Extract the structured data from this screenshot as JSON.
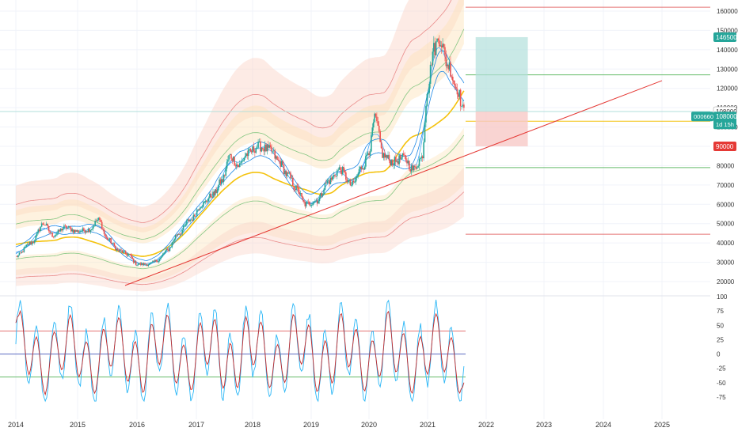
{
  "chart_data": [
    {
      "type": "candlestick",
      "title": "",
      "xlabel": "",
      "ylabel": "",
      "x_range": [
        2014.0,
        2025.9
      ],
      "ylim": [
        14000,
        164000
      ],
      "x_tick_labels": [
        "2014",
        "2015",
        "2016",
        "2017",
        "2018",
        "2019",
        "2020",
        "2021",
        "2022",
        "2023",
        "2024",
        "2025"
      ],
      "y_tick_labels": [
        "160000",
        "150000",
        "140000",
        "130000",
        "120000",
        "110000",
        "100000",
        "90000",
        "80000",
        "70000",
        "60000",
        "50000",
        "40000",
        "30000",
        "20000"
      ],
      "price_anchors": [
        [
          2014.0,
          33000
        ],
        [
          2014.25,
          40000
        ],
        [
          2014.45,
          50000
        ],
        [
          2014.6,
          44000
        ],
        [
          2014.8,
          48000
        ],
        [
          2015.0,
          46000
        ],
        [
          2015.2,
          47000
        ],
        [
          2015.35,
          52000
        ],
        [
          2015.5,
          42000
        ],
        [
          2015.7,
          36000
        ],
        [
          2015.85,
          34000
        ],
        [
          2016.0,
          29000
        ],
        [
          2016.2,
          29000
        ],
        [
          2016.35,
          31000
        ],
        [
          2016.5,
          36000
        ],
        [
          2016.7,
          45000
        ],
        [
          2016.9,
          52000
        ],
        [
          2017.1,
          60000
        ],
        [
          2017.3,
          65000
        ],
        [
          2017.45,
          72000
        ],
        [
          2017.6,
          85000
        ],
        [
          2017.75,
          80000
        ],
        [
          2017.9,
          86000
        ],
        [
          2018.1,
          90000
        ],
        [
          2018.3,
          88000
        ],
        [
          2018.45,
          82000
        ],
        [
          2018.6,
          75000
        ],
        [
          2018.75,
          68000
        ],
        [
          2018.9,
          60000
        ],
        [
          2019.1,
          62000
        ],
        [
          2019.3,
          72000
        ],
        [
          2019.5,
          78000
        ],
        [
          2019.7,
          70000
        ],
        [
          2019.9,
          80000
        ],
        [
          2020.0,
          88000
        ],
        [
          2020.1,
          104000
        ],
        [
          2020.25,
          85000
        ],
        [
          2020.4,
          82000
        ],
        [
          2020.6,
          84000
        ],
        [
          2020.75,
          78000
        ],
        [
          2020.9,
          84000
        ],
        [
          2021.0,
          120000
        ],
        [
          2021.1,
          140000
        ],
        [
          2021.2,
          146000
        ],
        [
          2021.35,
          132000
        ],
        [
          2021.5,
          120000
        ],
        [
          2021.62,
          108000
        ]
      ],
      "series": [
        {
          "name": "",
          "role": "fast-ma",
          "color": "#1e88e5",
          "values": []
        },
        {
          "name": "",
          "role": "slow-ma",
          "color": "#f4c20d",
          "values": []
        }
      ],
      "trendline": {
        "from": [
          2015.8,
          18000
        ],
        "to": [
          2025.0,
          124000
        ],
        "color": "#e53935"
      },
      "horizontal_lines": [
        {
          "value": 162000,
          "color": "#e57373"
        },
        {
          "value": 127000,
          "color": "#66bb6a"
        },
        {
          "value": 79000,
          "color": "#66bb6a"
        },
        {
          "value": 44500,
          "color": "#e57373"
        },
        {
          "value": 108000,
          "color": "#b2dfdb"
        },
        {
          "value": 103000,
          "color": "#f4c20d"
        }
      ],
      "position_box": {
        "x_start": 2021.82,
        "x_end": 2022.72,
        "entry": 108000,
        "target": 146500,
        "stop": 90000,
        "profit_color": "#b2dfdb",
        "loss_color": "#f8c9c7"
      },
      "price_labels": [
        {
          "text": "146500",
          "value": 146500,
          "bg": "#26a69a",
          "fg": "#ffffff"
        },
        {
          "text": "108000",
          "value": 108000,
          "bg": "#ffffff",
          "fg": "#333333"
        },
        {
          "text": "90000",
          "value": 90000,
          "bg": "#e53935",
          "fg": "#ffffff"
        }
      ],
      "current_price_tag": {
        "code": "000660",
        "price": "108000",
        "countdown": "1d 15h",
        "color": "#26a69a"
      }
    },
    {
      "type": "line",
      "title": "",
      "xlabel": "",
      "ylabel": "",
      "ylim": [
        -86,
        100
      ],
      "y_tick_labels": [
        "100",
        "75",
        "50",
        "25",
        "0",
        "-25",
        "-50",
        "-75"
      ],
      "series": [
        {
          "name": "",
          "color": "#29b6f6"
        },
        {
          "name": "",
          "color": "#c62828"
        }
      ],
      "levels": [
        {
          "value": 40,
          "color": "#e57373"
        },
        {
          "value": 0,
          "color": "#5c6bc0"
        },
        {
          "value": -40,
          "color": "#66bb6a"
        }
      ]
    }
  ],
  "colors": {
    "grid": "#f0f3fa",
    "axis_text": "#333333",
    "candle_up": "#26a69a",
    "candle_down": "#ef5350",
    "band_fill": "#fde7dc"
  }
}
